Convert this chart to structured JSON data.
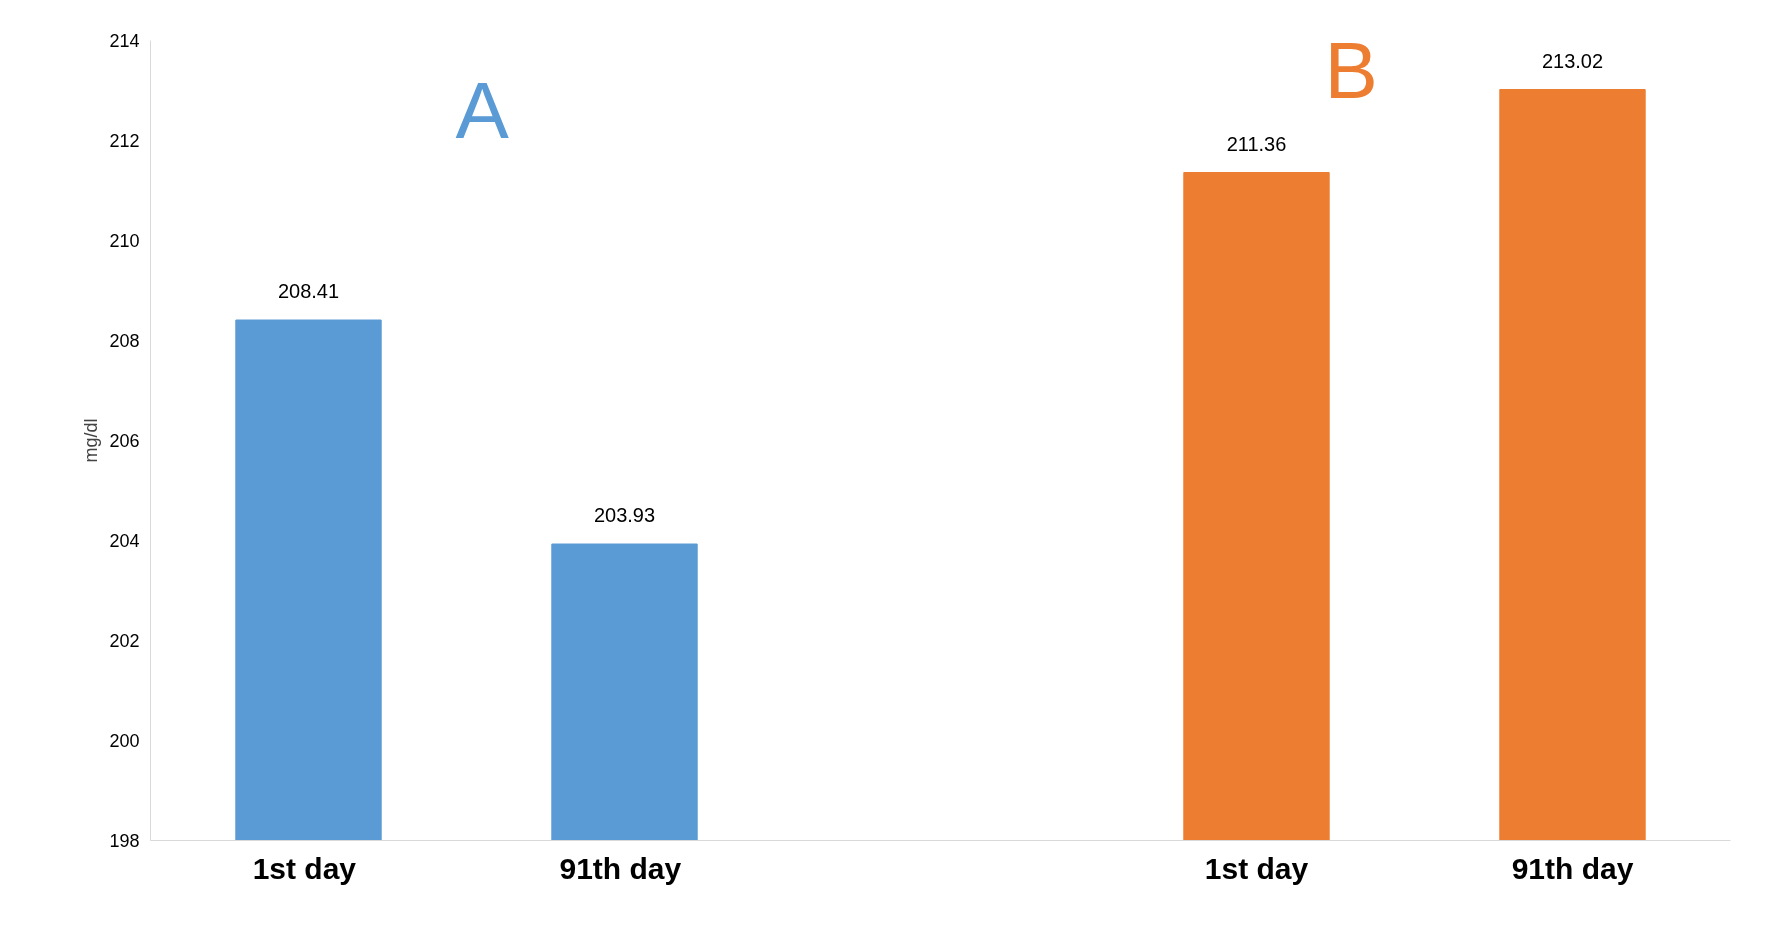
{
  "chart_data": {
    "type": "bar",
    "ylabel": "mg/dl",
    "categories": [
      "1st  day",
      "91th  day",
      null,
      "1st day",
      "91th day"
    ],
    "values": [
      208.41,
      203.93,
      null,
      211.36,
      213.02
    ],
    "colors": [
      "#5b9bd5",
      "#5b9bd5",
      null,
      "#ed7d31",
      "#ed7d31"
    ],
    "ylim": [
      198,
      214
    ],
    "yticks": [
      198,
      200,
      202,
      204,
      206,
      208,
      210,
      212,
      214
    ],
    "annotations": [
      "A",
      "B"
    ],
    "data_labels": true,
    "grid": false
  }
}
